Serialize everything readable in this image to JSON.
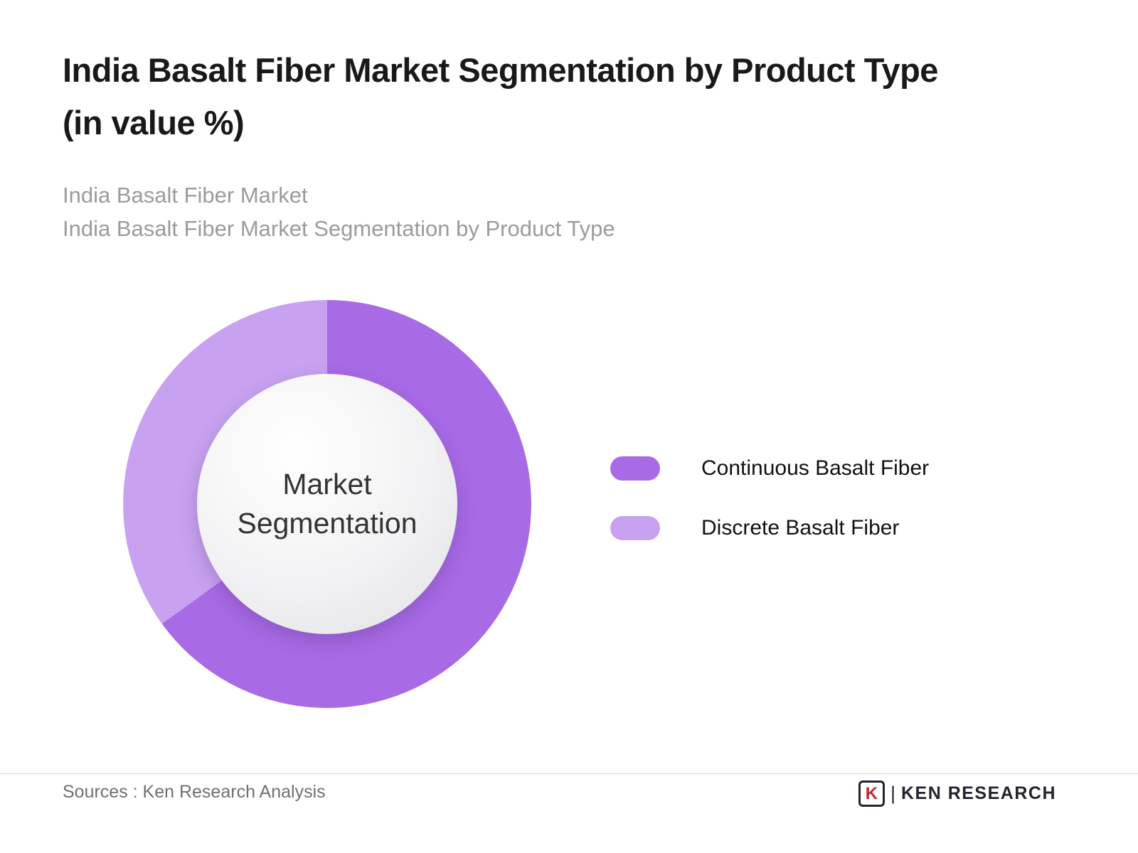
{
  "header": {
    "title_line1": "India Basalt Fiber Market Segmentation by Product Type",
    "title_line2": "(in value %)",
    "subtitle_line1": "India Basalt Fiber Market",
    "subtitle_line2": "India Basalt Fiber Market Segmentation by Product Type"
  },
  "chart_data": {
    "type": "pie",
    "variant": "donut",
    "title": "India Basalt Fiber Market Segmentation by Product Type (in value %)",
    "units": "value %",
    "center_label": "Market Segmentation",
    "start_angle_deg": 0,
    "direction": "clockwise",
    "legend_position": "right",
    "values_estimated": true,
    "segments": [
      {
        "label": "Continuous Basalt Fiber",
        "value": 65,
        "color": "#a96ae6"
      },
      {
        "label": "Discrete Basalt Fiber",
        "value": 35,
        "color": "#c8a2f0"
      }
    ]
  },
  "footer": {
    "sources": "Sources : Ken Research Analysis",
    "logo_letter": "K",
    "logo_separator": "|",
    "brand": "KEN RESEARCH"
  }
}
